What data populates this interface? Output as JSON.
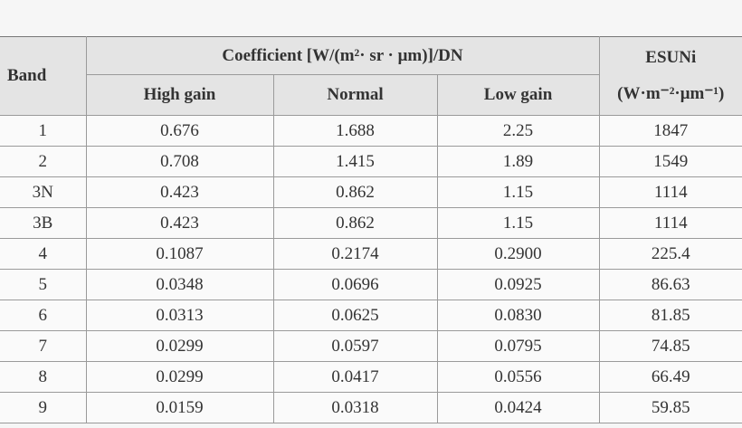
{
  "table": {
    "header": {
      "band": "Band",
      "coefficient": "Coefficient [W/(m²· sr · μm)]/DN",
      "high_gain": "High gain",
      "normal": "Normal",
      "low_gain": "Low gain",
      "esuni": "ESUNi",
      "esuni_unit": "(W·m⁻²·μm⁻¹)"
    },
    "rows": [
      [
        "1",
        "0.676",
        "1.688",
        "2.25",
        "1847"
      ],
      [
        "2",
        "0.708",
        "1.415",
        "1.89",
        "1549"
      ],
      [
        "3N",
        "0.423",
        "0.862",
        "1.15",
        "1114"
      ],
      [
        "3B",
        "0.423",
        "0.862",
        "1.15",
        "1114"
      ],
      [
        "4",
        "0.1087",
        "0.2174",
        "0.2900",
        "225.4"
      ],
      [
        "5",
        "0.0348",
        "0.0696",
        "0.0925",
        "86.63"
      ],
      [
        "6",
        "0.0313",
        "0.0625",
        "0.0830",
        "81.85"
      ],
      [
        "7",
        "0.0299",
        "0.0597",
        "0.0795",
        "74.85"
      ],
      [
        "8",
        "0.0299",
        "0.0417",
        "0.0556",
        "66.49"
      ],
      [
        "9",
        "0.0159",
        "0.0318",
        "0.0424",
        "59.85"
      ]
    ]
  }
}
